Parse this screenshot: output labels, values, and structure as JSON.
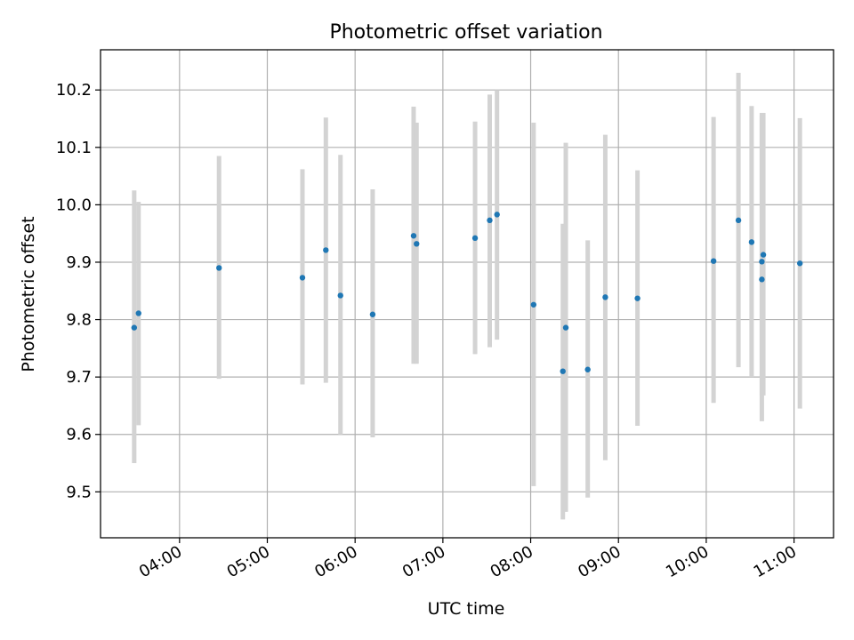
{
  "chart_data": {
    "type": "scatter",
    "title": "Photometric offset variation",
    "xlabel": "UTC time",
    "ylabel": "Photometric offset",
    "xlim": [
      "03:06",
      "11:27"
    ],
    "ylim": [
      9.42,
      10.27
    ],
    "x_ticks": [
      "04:00",
      "05:00",
      "06:00",
      "07:00",
      "08:00",
      "09:00",
      "10:00",
      "11:00"
    ],
    "y_ticks": [
      "9.5",
      "9.6",
      "9.7",
      "9.8",
      "9.9",
      "10.0",
      "10.1",
      "10.2"
    ],
    "grid": true,
    "colors": {
      "point": "#1f77b4",
      "errorbar": "#d3d3d3",
      "grid": "#b0b0b0"
    },
    "points": [
      {
        "time": "03:29",
        "value": 9.786,
        "low": 9.55,
        "high": 10.025
      },
      {
        "time": "03:32",
        "value": 9.811,
        "low": 9.616,
        "high": 10.005
      },
      {
        "time": "04:27",
        "value": 9.89,
        "low": 9.697,
        "high": 10.085
      },
      {
        "time": "05:24",
        "value": 9.873,
        "low": 9.687,
        "high": 10.062
      },
      {
        "time": "05:40",
        "value": 9.921,
        "low": 9.69,
        "high": 10.152
      },
      {
        "time": "05:50",
        "value": 9.842,
        "low": 9.6,
        "high": 10.087
      },
      {
        "time": "06:12",
        "value": 9.809,
        "low": 9.595,
        "high": 10.027
      },
      {
        "time": "06:40",
        "value": 9.946,
        "low": 9.723,
        "high": 10.171
      },
      {
        "time": "06:42",
        "value": 9.932,
        "low": 9.723,
        "high": 10.143
      },
      {
        "time": "07:22",
        "value": 9.942,
        "low": 9.74,
        "high": 10.145
      },
      {
        "time": "07:32",
        "value": 9.973,
        "low": 9.752,
        "high": 10.192
      },
      {
        "time": "07:37",
        "value": 9.983,
        "low": 9.765,
        "high": 10.2
      },
      {
        "time": "08:02",
        "value": 9.826,
        "low": 9.51,
        "high": 10.143
      },
      {
        "time": "08:22",
        "value": 9.71,
        "low": 9.452,
        "high": 9.967
      },
      {
        "time": "08:24",
        "value": 9.786,
        "low": 9.465,
        "high": 10.108
      },
      {
        "time": "08:39",
        "value": 9.713,
        "low": 9.49,
        "high": 9.938
      },
      {
        "time": "08:51",
        "value": 9.839,
        "low": 9.555,
        "high": 10.122
      },
      {
        "time": "09:13",
        "value": 9.837,
        "low": 9.615,
        "high": 10.06
      },
      {
        "time": "10:05",
        "value": 9.902,
        "low": 9.655,
        "high": 10.153
      },
      {
        "time": "10:22",
        "value": 9.973,
        "low": 9.717,
        "high": 10.23
      },
      {
        "time": "10:31",
        "value": 9.935,
        "low": 9.7,
        "high": 10.172
      },
      {
        "time": "10:38",
        "value": 9.901,
        "low": 9.623,
        "high": 10.155
      },
      {
        "time": "10:38",
        "value": 9.87,
        "low": 9.668,
        "high": 10.16
      },
      {
        "time": "10:39",
        "value": 9.913,
        "low": 9.668,
        "high": 10.16
      },
      {
        "time": "11:04",
        "value": 9.898,
        "low": 9.645,
        "high": 10.151
      }
    ]
  }
}
